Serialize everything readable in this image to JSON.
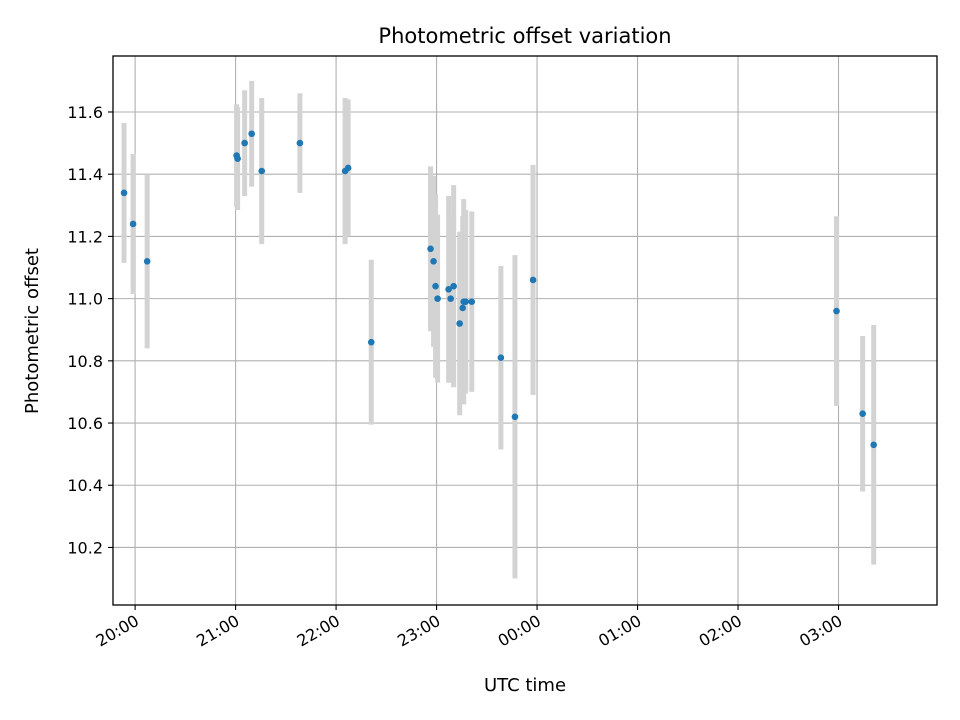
{
  "chart_data": {
    "type": "scatter",
    "title": "Photometric offset variation",
    "xlabel": "UTC time",
    "ylabel": "Photometric offset",
    "grid": true,
    "x_unit": "hours since 20:00 UTC (next day continues past 24:00 as 00:00, 01:00, ...)",
    "xlim": [
      -0.22,
      7.98
    ],
    "ylim": [
      10.015,
      11.78
    ],
    "x_ticks": [
      0,
      1,
      2,
      3,
      4,
      5,
      6,
      7
    ],
    "x_tick_labels": [
      "20:00",
      "21:00",
      "22:00",
      "23:00",
      "00:00",
      "01:00",
      "02:00",
      "03:00"
    ],
    "y_ticks": [
      10.2,
      10.4,
      10.6,
      10.8,
      11.0,
      11.2,
      11.4,
      11.6
    ],
    "y_tick_labels": [
      "10.2",
      "10.4",
      "10.6",
      "10.8",
      "11.0",
      "11.2",
      "11.4",
      "11.6"
    ],
    "colors": {
      "point": "#1f77b4",
      "errorbar": "#d3d3d3",
      "grid": "#b0b0b0"
    },
    "points": [
      {
        "x": -0.11,
        "y": 11.34,
        "err": 0.225
      },
      {
        "x": -0.02,
        "y": 11.24,
        "err": 0.225
      },
      {
        "x": 0.12,
        "y": 11.12,
        "err": 0.28
      },
      {
        "x": 1.01,
        "y": 11.46,
        "err": 0.165
      },
      {
        "x": 1.02,
        "y": 11.45,
        "err": 0.165
      },
      {
        "x": 1.09,
        "y": 11.5,
        "err": 0.17
      },
      {
        "x": 1.16,
        "y": 11.53,
        "err": 0.17
      },
      {
        "x": 1.26,
        "y": 11.41,
        "err": 0.235
      },
      {
        "x": 1.64,
        "y": 11.5,
        "err": 0.16
      },
      {
        "x": 2.09,
        "y": 11.41,
        "err": 0.235
      },
      {
        "x": 2.12,
        "y": 11.42,
        "err": 0.22
      },
      {
        "x": 2.35,
        "y": 10.86,
        "err": 0.265
      },
      {
        "x": 2.94,
        "y": 11.16,
        "err": 0.265
      },
      {
        "x": 2.97,
        "y": 11.12,
        "err": 0.275
      },
      {
        "x": 2.99,
        "y": 11.04,
        "err": 0.295
      },
      {
        "x": 3.01,
        "y": 11.0,
        "err": 0.27
      },
      {
        "x": 3.12,
        "y": 11.03,
        "err": 0.3
      },
      {
        "x": 3.14,
        "y": 11.0,
        "err": 0.27
      },
      {
        "x": 3.17,
        "y": 11.04,
        "err": 0.325
      },
      {
        "x": 3.23,
        "y": 10.92,
        "err": 0.295
      },
      {
        "x": 3.26,
        "y": 10.97,
        "err": 0.295
      },
      {
        "x": 3.27,
        "y": 10.99,
        "err": 0.33
      },
      {
        "x": 3.29,
        "y": 10.99,
        "err": 0.295
      },
      {
        "x": 3.35,
        "y": 10.99,
        "err": 0.29
      },
      {
        "x": 3.64,
        "y": 10.81,
        "err": 0.295
      },
      {
        "x": 3.78,
        "y": 10.62,
        "err": 0.52
      },
      {
        "x": 3.96,
        "y": 11.06,
        "err": 0.37
      },
      {
        "x": 6.98,
        "y": 10.96,
        "err": 0.305
      },
      {
        "x": 7.24,
        "y": 10.63,
        "err": 0.25
      },
      {
        "x": 7.35,
        "y": 10.53,
        "err": 0.385
      }
    ]
  }
}
